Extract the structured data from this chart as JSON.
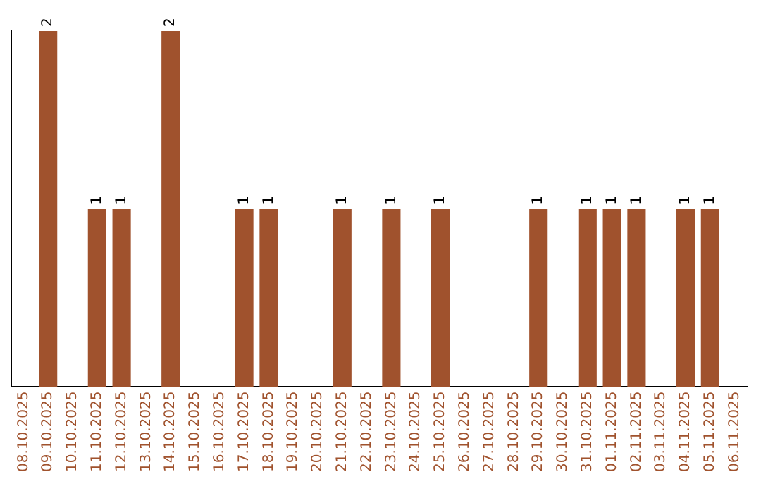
{
  "chart_data": {
    "type": "bar",
    "categories": [
      "08.10.2025",
      "09.10.2025",
      "10.10.2025",
      "11.10.2025",
      "12.10.2025",
      "13.10.2025",
      "14.10.2025",
      "15.10.2025",
      "16.10.2025",
      "17.10.2025",
      "18.10.2025",
      "19.10.2025",
      "20.10.2025",
      "21.10.2025",
      "22.10.2025",
      "23.10.2025",
      "24.10.2025",
      "25.10.2025",
      "26.10.2025",
      "27.10.2025",
      "28.10.2025",
      "29.10.2025",
      "30.10.2025",
      "31.10.2025",
      "01.11.2025",
      "02.11.2025",
      "03.11.2025",
      "04.11.2025",
      "05.11.2025",
      "06.11.2025"
    ],
    "values": [
      0,
      2,
      0,
      1,
      1,
      0,
      2,
      0,
      0,
      1,
      1,
      0,
      0,
      1,
      0,
      1,
      0,
      1,
      0,
      0,
      0,
      1,
      0,
      1,
      1,
      1,
      0,
      1,
      1,
      0
    ],
    "value_labels": [
      null,
      "2",
      null,
      "1",
      "1",
      null,
      "2",
      null,
      null,
      "1",
      "1",
      null,
      null,
      "1",
      null,
      "1",
      null,
      "1",
      null,
      null,
      null,
      "1",
      null,
      "1",
      "1",
      "1",
      null,
      "1",
      "1",
      null
    ],
    "color": "#a0522d",
    "grid": false,
    "legend": false,
    "tick_labels": "x"
  }
}
